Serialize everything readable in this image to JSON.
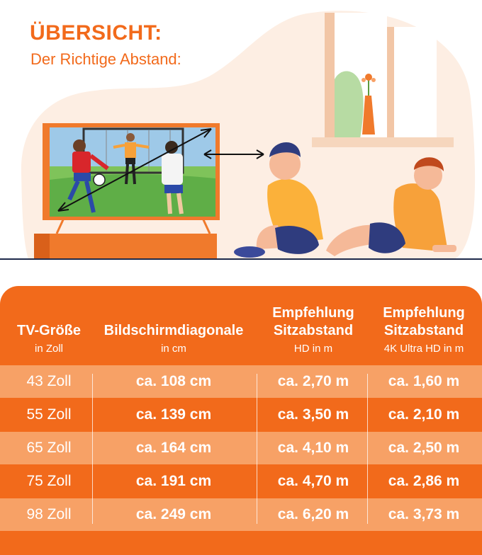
{
  "title": "ÜBERSICHT:",
  "subtitle": "Der Richtige Abstand:",
  "colors": {
    "orange": "#f26a1b",
    "orange_light": "#f7a166",
    "blob": "#fdeee3",
    "tv_stand": "#f07a2c"
  },
  "table": {
    "headers": [
      {
        "title": "TV-Größe",
        "sub": "in Zoll"
      },
      {
        "title": "Bildschirmdiagonale",
        "sub": "in cm"
      },
      {
        "title": "Empfehlung\nSitzabstand",
        "sub": "HD in m"
      },
      {
        "title": "Empfehlung\nSitzabstand",
        "sub": "4K Ultra HD in m"
      }
    ],
    "rows": [
      [
        "43 Zoll",
        "ca. 108 cm",
        "ca. 2,70 m",
        "ca. 1,60 m"
      ],
      [
        "55 Zoll",
        "ca. 139 cm",
        "ca. 3,50 m",
        "ca. 2,10 m"
      ],
      [
        "65 Zoll",
        "ca. 164 cm",
        "ca. 4,10 m",
        "ca. 2,50 m"
      ],
      [
        "75 Zoll",
        "ca. 191 cm",
        "ca. 4,70 m",
        "ca. 2,86 m"
      ],
      [
        "98 Zoll",
        "ca. 249 cm",
        "ca. 6,20 m",
        "ca. 3,73 m"
      ]
    ]
  }
}
